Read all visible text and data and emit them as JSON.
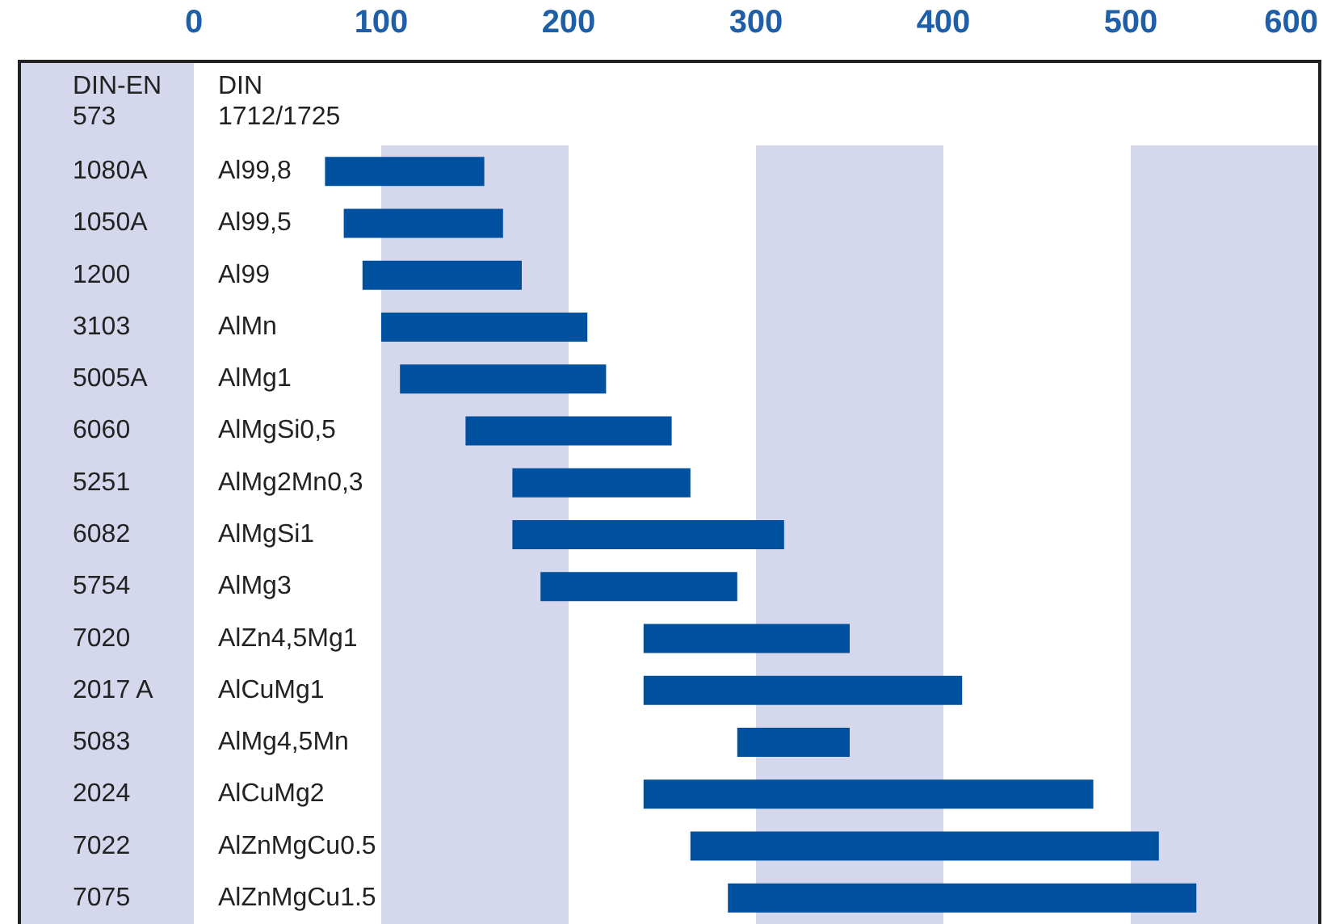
{
  "chart_data": {
    "type": "bar",
    "orientation": "horizontal",
    "ylabel": "DIN-EN 573",
    "y2label": "DIN 1712/1725",
    "categories": [
      "1080A",
      "1050A",
      "1200",
      "3103",
      "5005A",
      "6060",
      "5251",
      "6082",
      "5754",
      "7020",
      "2017 A",
      "5083",
      "2024",
      "7022",
      "7075"
    ],
    "y2_categories": [
      "Al99,8",
      "Al99,5",
      "Al99",
      "AlMn",
      "AlMg1",
      "AlMgSi0,5",
      "AlMg2Mn0,3",
      "AlMgSi1",
      "AlMg3",
      "AlZn4,5Mg1",
      "AlCuMg1",
      "AlMg4,5Mn",
      "AlCuMg2",
      "AlZnMgCu0.5",
      "AlZnMgCu1.5"
    ],
    "base": [
      70,
      80,
      90,
      100,
      110,
      145,
      170,
      170,
      185,
      240,
      240,
      290,
      240,
      265,
      285
    ],
    "values": [
      85,
      85,
      85,
      110,
      110,
      110,
      95,
      145,
      105,
      110,
      170,
      60,
      240,
      250,
      250
    ],
    "color": "#0050a0",
    "xlim": [
      0,
      600
    ],
    "xticks": [
      0,
      100,
      200,
      300,
      400,
      500,
      600
    ],
    "bands": [
      {
        "axis": "x",
        "from": 100,
        "to": 200,
        "color": "#d5d8ec"
      },
      {
        "axis": "x",
        "from": 300,
        "to": 400,
        "color": "#d5d8ec"
      },
      {
        "axis": "x",
        "from": 500,
        "to": 600,
        "color": "#d5d8ec"
      }
    ],
    "grid": false
  }
}
